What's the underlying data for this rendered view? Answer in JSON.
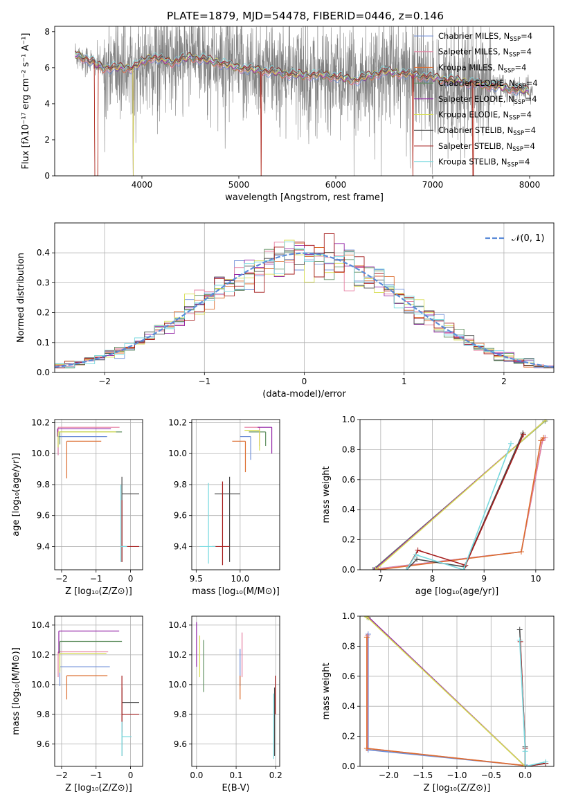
{
  "figure": {
    "title": "PLATE=1879, MJD=54478, FIBERID=0446, z=0.146"
  },
  "colors": {
    "chabrier_miles": "#6f8fd8",
    "salpeter_miles": "#e67ea0",
    "kroupa_miles": "#dc6d2f",
    "chabrier_elodie": "#5f8f5f",
    "salpeter_elodie": "#9325a6",
    "kroupa_elodie": "#d7de52",
    "chabrier_stelib": "#4b4b4b",
    "salpeter_stelib": "#a51d1d",
    "kroupa_stelib": "#78d9df",
    "data_gray": "#808080",
    "gauss": "#5b8bd8",
    "grid": "#b0b0b0"
  },
  "chart_data": [
    {
      "id": "spectrum",
      "type": "line",
      "title": "PLATE=1879, MJD=54478, FIBERID=0446, z=0.146",
      "xlabel": "wavelength [Angstrom, rest frame]",
      "ylabel": "Flux [f$_\\lambda$10$^{-17}$ erg cm$^{-2}$ s$^{-1}$ A$^{-1}$]",
      "ylabel_display": "Flux [fλ10⁻¹⁷ erg cm⁻² s⁻¹ A⁻¹]",
      "xlim": [
        3100,
        8250
      ],
      "ylim": [
        0,
        8.3
      ],
      "xticks": [
        "4000",
        "5000",
        "6000",
        "7000",
        "8000"
      ],
      "yticks": [
        "0",
        "2",
        "4",
        "6",
        "8"
      ],
      "grid": false,
      "legend_position": "top-right",
      "legend": [
        {
          "label": "Chabrier MILES, N$_{SSP}$=4",
          "label_main": "Chabrier MILES, N",
          "label_sub": "SSP",
          "label_tail": "=4"
        },
        {
          "label": "Salpeter MILES, N$_{SSP}$=4",
          "label_main": "Salpeter MILES, N",
          "label_sub": "SSP",
          "label_tail": "=4"
        },
        {
          "label": "Kroupa MILES, N$_{SSP}$=4",
          "label_main": "Kroupa MILES, N",
          "label_sub": "SSP",
          "label_tail": "=4"
        },
        {
          "label": "Chabrier ELODIE, N$_{SSP}$=4",
          "label_main": "Chabrier ELODIE, N",
          "label_sub": "SSP",
          "label_tail": "=4"
        },
        {
          "label": "Salpeter ELODIE, N$_{SSP}$=4",
          "label_main": "Salpeter ELODIE, N",
          "label_sub": "SSP",
          "label_tail": "=4"
        },
        {
          "label": "Kroupa ELODIE, N$_{SSP}$=4",
          "label_main": "Kroupa ELODIE, N",
          "label_sub": "SSP",
          "label_tail": "=4"
        },
        {
          "label": "Chabrier STELIB, N$_{SSP}$=4",
          "label_main": "Chabrier STELIB, N",
          "label_sub": "SSP",
          "label_tail": "=4"
        },
        {
          "label": "Salpeter STELIB, N$_{SSP}$=4",
          "label_main": "Salpeter STELIB, N",
          "label_sub": "SSP",
          "label_tail": "=4"
        },
        {
          "label": "Kroupa STELIB, N$_{SSP}$=4",
          "label_main": "Kroupa STELIB, N",
          "label_sub": "SSP",
          "label_tail": "=4"
        }
      ],
      "continuum_knots": [
        [
          3300,
          6.8
        ],
        [
          3420,
          6.5
        ],
        [
          3600,
          6.0
        ],
        [
          3900,
          6.0
        ],
        [
          4100,
          6.6
        ],
        [
          4300,
          6.3
        ],
        [
          4500,
          6.6
        ],
        [
          4700,
          6.4
        ],
        [
          5000,
          6.0
        ],
        [
          5300,
          5.8
        ],
        [
          5600,
          5.6
        ],
        [
          5900,
          5.6
        ],
        [
          6200,
          5.3
        ],
        [
          6500,
          5.8
        ],
        [
          6800,
          5.6
        ],
        [
          7200,
          5.3
        ],
        [
          7600,
          5.0
        ],
        [
          8000,
          4.7
        ]
      ],
      "data_range": [
        3310,
        8030
      ],
      "model_range": [
        3310,
        7990
      ],
      "dropouts": [
        [
          3510,
          3545
        ],
        [
          5225,
          5232
        ],
        [
          6795,
          6800
        ],
        [
          7410,
          7420
        ]
      ],
      "elodie_dropout": [
        3905,
        3915
      ]
    },
    {
      "id": "residual_histogram",
      "type": "line",
      "xlabel": "(data-model)/error",
      "ylabel": "Normed distribution",
      "xlim": [
        -2.5,
        2.5
      ],
      "ylim": [
        0,
        0.5
      ],
      "xticks": [
        "−2",
        "−1",
        "0",
        "1",
        "2"
      ],
      "yticks": [
        "0.0",
        "0.1",
        "0.2",
        "0.3",
        "0.4"
      ],
      "grid": true,
      "legend_position": "top-right",
      "gauss_label": "𝒩(0, 1)",
      "bin_width": 0.1
    },
    {
      "id": "age_vs_Z",
      "type": "scatter",
      "xlabel": "Z [log$_{10}$(Z/Z$_\\odot$)]",
      "xlabel_display": "Z [log₁₀(Z/Z⊙)]",
      "ylabel": "age  [log$_{10}$(age/yr)]",
      "ylabel_display": "age  [log₁₀(age/yr)]",
      "xlim": [
        -2.2,
        0.35
      ],
      "ylim": [
        9.25,
        10.22
      ],
      "xticks": [
        "−2",
        "−1",
        "0"
      ],
      "yticks": [
        "9.4",
        "9.6",
        "9.8",
        "10.0",
        "10.2"
      ],
      "grid": true,
      "errorbars": [
        {
          "model": "chabrier_miles",
          "x": -2.1,
          "y": 10.11,
          "xerr": [
            0.0,
            1.42
          ],
          "yerr": [
            0.12,
            0.0
          ]
        },
        {
          "model": "salpeter_miles",
          "x": -2.1,
          "y": 10.17,
          "xerr": [
            0.0,
            1.78
          ],
          "yerr": [
            0.18,
            0.0
          ]
        },
        {
          "model": "kroupa_miles",
          "x": -1.85,
          "y": 10.08,
          "xerr": [
            0.0,
            1.0
          ],
          "yerr": [
            0.24,
            0.0
          ]
        },
        {
          "model": "chabrier_elodie",
          "x": -2.05,
          "y": 10.14,
          "xerr": [
            0.0,
            1.8
          ],
          "yerr": [
            0.08,
            0.0
          ]
        },
        {
          "model": "salpeter_elodie",
          "x": -2.12,
          "y": 10.16,
          "xerr": [
            0.0,
            1.55
          ],
          "yerr": [
            0.05,
            0.0
          ]
        },
        {
          "model": "kroupa_elodie",
          "x": -2.1,
          "y": 10.14,
          "xerr": [
            0.0,
            1.68
          ],
          "yerr": [
            0.1,
            0.0
          ]
        },
        {
          "model": "chabrier_stelib",
          "x": -0.25,
          "y": 9.74,
          "xerr": [
            0.0,
            0.5
          ],
          "yerr": [
            0.44,
            0.11
          ]
        },
        {
          "model": "salpeter_stelib",
          "x": -0.25,
          "y": 9.4,
          "xerr": [
            0.0,
            0.5
          ],
          "yerr": [
            0.1,
            0.3
          ]
        },
        {
          "model": "kroupa_stelib",
          "x": -0.28,
          "y": 9.4,
          "xerr": [
            0.0,
            0.18
          ],
          "yerr": [
            0.1,
            0.4
          ]
        }
      ]
    },
    {
      "id": "age_vs_mass",
      "type": "scatter",
      "xlabel": "mass [log$_{10}$(M/M$_\\odot$)]",
      "xlabel_display": "mass [log₁₀(M/M⊙)]",
      "xlim": [
        9.45,
        10.45
      ],
      "ylim": [
        9.25,
        10.22
      ],
      "xticks": [
        "9.5",
        "10.0"
      ],
      "yticks": [
        "9.4",
        "9.6",
        "9.8",
        "10.0",
        "10.2"
      ],
      "grid": true,
      "errorbars": [
        {
          "model": "chabrier_miles",
          "x": 10.12,
          "y": 10.11,
          "xerr": [
            0.12,
            0.0
          ],
          "yerr": [
            0.15,
            0.0
          ]
        },
        {
          "model": "salpeter_miles",
          "x": 10.22,
          "y": 10.17,
          "xerr": [
            0.17,
            0.0
          ],
          "yerr": [
            0.12,
            0.0
          ]
        },
        {
          "model": "kroupa_miles",
          "x": 10.06,
          "y": 10.08,
          "xerr": [
            0.15,
            0.0
          ],
          "yerr": [
            0.2,
            0.0
          ]
        },
        {
          "model": "chabrier_elodie",
          "x": 10.29,
          "y": 10.14,
          "xerr": [
            0.19,
            0.0
          ],
          "yerr": [
            0.09,
            0.0
          ]
        },
        {
          "model": "salpeter_elodie",
          "x": 10.36,
          "y": 10.17,
          "xerr": [
            0.16,
            0.0
          ],
          "yerr": [
            0.17,
            0.0
          ]
        },
        {
          "model": "kroupa_elodie",
          "x": 10.22,
          "y": 10.15,
          "xerr": [
            0.17,
            0.0
          ],
          "yerr": [
            0.13,
            0.0
          ]
        },
        {
          "model": "chabrier_stelib",
          "x": 9.88,
          "y": 9.74,
          "xerr": [
            0.17,
            0.12
          ],
          "yerr": [
            0.44,
            0.11
          ]
        },
        {
          "model": "salpeter_stelib",
          "x": 9.8,
          "y": 9.4,
          "xerr": [
            0.12,
            0.08
          ],
          "yerr": [
            0.12,
            0.42
          ]
        },
        {
          "model": "kroupa_stelib",
          "x": 9.64,
          "y": 9.4,
          "xerr": [
            0.1,
            0.08
          ],
          "yerr": [
            0.11,
            0.41
          ]
        }
      ]
    },
    {
      "id": "weight_vs_age",
      "type": "line",
      "xlabel": "age  [log$_{10}$(age/yr)]",
      "xlabel_display": "age  [log₁₀(age/yr)]",
      "ylabel": "mass weight",
      "xlim": [
        6.6,
        10.35
      ],
      "ylim": [
        0,
        1
      ],
      "xticks": [
        "7",
        "8",
        "9",
        "10"
      ],
      "yticks": [
        "0.0",
        "0.2",
        "0.4",
        "0.6",
        "0.8",
        "1.0"
      ],
      "grid": true,
      "series": [
        {
          "model": "chabrier_miles",
          "x": [
            6.9,
            9.72,
            10.13,
            10.18
          ],
          "y": [
            0.005,
            0.12,
            0.86,
            0.88
          ]
        },
        {
          "model": "salpeter_miles",
          "x": [
            6.92,
            9.72,
            10.13,
            10.18
          ],
          "y": [
            0.005,
            0.12,
            0.86,
            0.88
          ]
        },
        {
          "model": "kroupa_miles",
          "x": [
            6.95,
            9.72,
            10.1,
            10.15
          ],
          "y": [
            0.0,
            0.12,
            0.86,
            0.88
          ]
        },
        {
          "model": "chabrier_elodie",
          "x": [
            6.85,
            10.18
          ],
          "y": [
            0.0,
            0.99
          ]
        },
        {
          "model": "salpeter_elodie",
          "x": [
            6.87,
            10.2
          ],
          "y": [
            0.0,
            1.0
          ]
        },
        {
          "model": "kroupa_elodie",
          "x": [
            6.9,
            10.2
          ],
          "y": [
            0.0,
            1.0
          ]
        },
        {
          "model": "chabrier_stelib",
          "x": [
            7.5,
            7.7,
            8.62,
            9.75
          ],
          "y": [
            0.0,
            0.07,
            0.02,
            0.91
          ]
        },
        {
          "model": "salpeter_stelib",
          "x": [
            7.5,
            7.72,
            8.64,
            9.76
          ],
          "y": [
            0.0,
            0.13,
            0.03,
            0.9
          ]
        },
        {
          "model": "kroupa_stelib",
          "x": [
            7.5,
            7.68,
            8.6,
            9.52
          ],
          "y": [
            0.0,
            0.1,
            0.0,
            0.84
          ]
        }
      ]
    },
    {
      "id": "mass_vs_Z",
      "type": "scatter",
      "xlabel": "Z [log$_{10}$(Z/Z$_\\odot$)]",
      "xlabel_display": "Z [log₁₀(Z/Z⊙)]",
      "ylabel": "mass [log$_{10}$(M/M$_\\odot$)]",
      "ylabel_display": "mass [log₁₀(M/M⊙)]",
      "xlim": [
        -2.2,
        0.35
      ],
      "ylim": [
        9.45,
        10.46
      ],
      "xticks": [
        "−2",
        "−1",
        "0"
      ],
      "yticks": [
        "9.6",
        "9.8",
        "10.0",
        "10.2",
        "10.4"
      ],
      "grid": true,
      "errorbars": [
        {
          "model": "chabrier_miles",
          "x": -2.05,
          "y": 10.12,
          "xerr": [
            0.0,
            1.45
          ],
          "yerr": [
            0.13,
            0.0
          ]
        },
        {
          "model": "salpeter_miles",
          "x": -2.1,
          "y": 10.22,
          "xerr": [
            0.0,
            1.45
          ],
          "yerr": [
            0.17,
            0.0
          ]
        },
        {
          "model": "kroupa_miles",
          "x": -1.85,
          "y": 10.06,
          "xerr": [
            0.0,
            1.18
          ],
          "yerr": [
            0.16,
            0.0
          ]
        },
        {
          "model": "chabrier_elodie",
          "x": -2.05,
          "y": 10.29,
          "xerr": [
            0.0,
            1.8
          ],
          "yerr": [
            0.2,
            0.0
          ]
        },
        {
          "model": "salpeter_elodie",
          "x": -2.08,
          "y": 10.36,
          "xerr": [
            0.0,
            1.75
          ],
          "yerr": [
            0.15,
            0.0
          ]
        },
        {
          "model": "kroupa_elodie",
          "x": -2.05,
          "y": 10.21,
          "xerr": [
            0.0,
            1.35
          ],
          "yerr": [
            0.13,
            0.0
          ]
        },
        {
          "model": "chabrier_stelib",
          "x": -0.25,
          "y": 9.88,
          "xerr": [
            0.0,
            0.5
          ],
          "yerr": [
            0.36,
            0.1
          ]
        },
        {
          "model": "salpeter_stelib",
          "x": -0.25,
          "y": 9.8,
          "xerr": [
            0.0,
            0.5
          ],
          "yerr": [
            0.12,
            0.26
          ]
        },
        {
          "model": "kroupa_stelib",
          "x": -0.25,
          "y": 9.65,
          "xerr": [
            0.0,
            0.28
          ],
          "yerr": [
            0.13,
            0.1
          ]
        }
      ]
    },
    {
      "id": "mass_vs_ebv",
      "type": "scatter",
      "xlabel": "E(B-V)",
      "xlim": [
        -0.012,
        0.21
      ],
      "ylim": [
        9.45,
        10.46
      ],
      "xticks": [
        "0.0",
        "0.1",
        "0.2"
      ],
      "yticks": [
        "9.6",
        "9.8",
        "10.0",
        "10.2",
        "10.4"
      ],
      "grid": true,
      "errorbars": [
        {
          "model": "chabrier_miles",
          "x": 0.11,
          "y": 10.12,
          "yerr": [
            0.13,
            0.12
          ]
        },
        {
          "model": "salpeter_miles",
          "x": 0.115,
          "y": 10.22,
          "yerr": [
            0.17,
            0.13
          ]
        },
        {
          "model": "kroupa_miles",
          "x": 0.11,
          "y": 10.06,
          "yerr": [
            0.16,
            0.0
          ]
        },
        {
          "model": "chabrier_elodie",
          "x": 0.018,
          "y": 10.13,
          "yerr": [
            0.18,
            0.17
          ]
        },
        {
          "model": "salpeter_elodie",
          "x": 0.0,
          "y": 10.27,
          "yerr": [
            0.15,
            0.15
          ]
        },
        {
          "model": "kroupa_elodie",
          "x": 0.008,
          "y": 10.19,
          "yerr": [
            0.14,
            0.14
          ]
        },
        {
          "model": "chabrier_stelib",
          "x": 0.197,
          "y": 9.75,
          "yerr": [
            0.23,
            0.23
          ]
        },
        {
          "model": "salpeter_stelib",
          "x": 0.199,
          "y": 9.9,
          "yerr": [
            0.1,
            0.16
          ]
        },
        {
          "model": "kroupa_stelib",
          "x": 0.195,
          "y": 9.72,
          "yerr": [
            0.22,
            0.22
          ]
        }
      ]
    },
    {
      "id": "weight_vs_Z",
      "type": "line",
      "xlabel": "Z [log$_{10}$(Z/Z$_\\odot$)]",
      "xlabel_display": "Z [log₁₀(Z/Z⊙)]",
      "ylabel": "mass weight",
      "xlim": [
        -2.42,
        0.42
      ],
      "ylim": [
        0,
        1
      ],
      "xticks": [
        "−2.0",
        "−1.5",
        "−1.0",
        "−0.5",
        "0.0"
      ],
      "yticks": [
        "0.0",
        "0.2",
        "0.4",
        "0.6",
        "0.8",
        "1.0"
      ],
      "grid": true,
      "series": [
        {
          "model": "chabrier_miles",
          "x": [
            -2.3,
            -2.3,
            0.0,
            0.0
          ],
          "y": [
            0.88,
            0.11,
            0.005,
            0.01
          ]
        },
        {
          "model": "salpeter_miles",
          "x": [
            -2.31,
            -2.31,
            0.0,
            0.0
          ],
          "y": [
            0.87,
            0.12,
            0.005,
            0.0
          ]
        },
        {
          "model": "kroupa_miles",
          "x": [
            -2.32,
            -2.32,
            0.0
          ],
          "y": [
            0.86,
            0.12,
            0.005
          ]
        },
        {
          "model": "chabrier_elodie",
          "x": [
            -2.3,
            0.0
          ],
          "y": [
            0.99,
            0.0
          ]
        },
        {
          "model": "salpeter_elodie",
          "x": [
            -2.31,
            0.0
          ],
          "y": [
            1.0,
            0.0
          ]
        },
        {
          "model": "kroupa_elodie",
          "x": [
            -2.32,
            0.0
          ],
          "y": [
            0.995,
            0.0
          ]
        },
        {
          "model": "chabrier_stelib",
          "x": [
            -0.08,
            0.0,
            0.0,
            0.3
          ],
          "y": [
            0.91,
            0.13,
            0.0,
            0.02
          ]
        },
        {
          "model": "salpeter_stelib",
          "x": [
            -0.07,
            0.0,
            0.0,
            0.3
          ],
          "y": [
            0.83,
            0.12,
            0.0,
            0.02
          ]
        },
        {
          "model": "kroupa_stelib",
          "x": [
            -0.08,
            0.0,
            0.0,
            0.3
          ],
          "y": [
            0.84,
            0.1,
            0.0,
            0.03
          ]
        }
      ]
    }
  ]
}
